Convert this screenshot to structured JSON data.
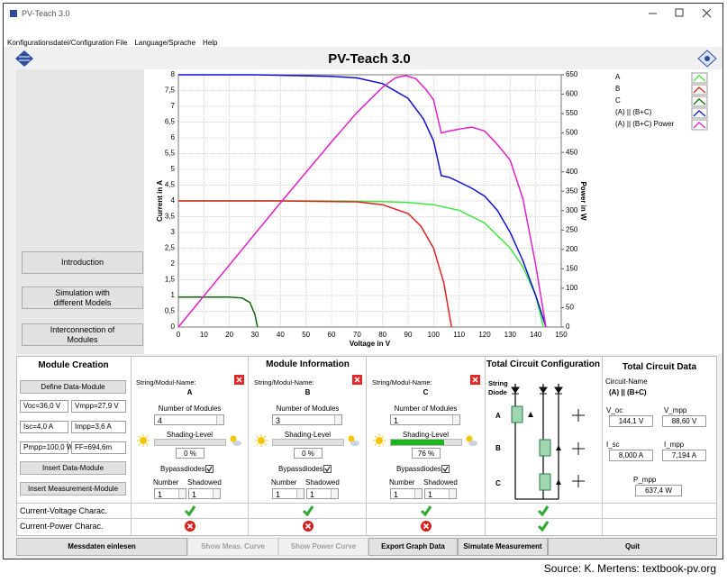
{
  "window": {
    "title": "PV-Teach 3.0",
    "menu": [
      "Konfigurationsdatei/Configuration File",
      "Language/Sprache",
      "Help"
    ]
  },
  "header": {
    "title": "PV-Teach 3.0"
  },
  "nav": [
    "Introduction",
    "Simulation with different Models",
    "Interconnection of Modules"
  ],
  "chart_data": {
    "type": "line",
    "xlabel": "Voltage in V",
    "ylabel": "Current in A",
    "y2label": "Power in W",
    "xlim": [
      0,
      150
    ],
    "xticks": [
      0,
      10,
      20,
      30,
      40,
      50,
      60,
      70,
      80,
      90,
      100,
      110,
      120,
      130,
      140,
      150
    ],
    "ylim": [
      0,
      8
    ],
    "yticks": [
      0,
      {
        "value": 0.5,
        "label": "0,5"
      },
      1,
      {
        "value": 1.5,
        "label": "1,5"
      },
      2,
      {
        "value": 2.5,
        "label": "2,5"
      },
      3,
      {
        "value": 3.5,
        "label": "3,5"
      },
      4,
      {
        "value": 4.5,
        "label": "4,5"
      },
      5,
      {
        "value": 5.5,
        "label": "5,5"
      },
      6,
      {
        "value": 6.5,
        "label": "6,5"
      },
      7,
      {
        "value": 7.5,
        "label": "7,5"
      },
      8
    ],
    "y2lim": [
      0,
      650
    ],
    "y2ticks": [
      0,
      50,
      100,
      150,
      200,
      250,
      300,
      350,
      400,
      450,
      500,
      550,
      600,
      650
    ],
    "grid": true,
    "legend": "right",
    "series": [
      {
        "name": "A",
        "color": "#3fe83f",
        "x": [
          0,
          20,
          40,
          60,
          80,
          90,
          100,
          110,
          120,
          130,
          135,
          140,
          143
        ],
        "values": [
          4,
          4,
          4,
          4,
          3.98,
          3.95,
          3.88,
          3.7,
          3.3,
          2.5,
          1.9,
          1.0,
          0
        ]
      },
      {
        "name": "B",
        "color": "#e02020",
        "x": [
          0,
          40,
          70,
          80,
          90,
          95,
          100,
          104,
          107
        ],
        "values": [
          4,
          4,
          3.97,
          3.88,
          3.6,
          3.2,
          2.5,
          1.4,
          0
        ]
      },
      {
        "name": "C",
        "color": "#0a6a0a",
        "x": [
          0,
          10,
          20,
          25,
          28,
          30,
          31
        ],
        "values": [
          0.95,
          0.95,
          0.95,
          0.92,
          0.78,
          0.4,
          0
        ]
      },
      {
        "name": "(A) || (B+C)",
        "color": "#1010d0",
        "x": [
          0,
          30,
          60,
          70,
          80,
          90,
          96,
          100,
          103,
          106,
          110,
          115,
          120,
          125,
          130,
          135,
          140,
          144
        ],
        "values": [
          8,
          8,
          7.95,
          7.9,
          7.72,
          7.25,
          6.6,
          5.9,
          4.8,
          4.75,
          4.6,
          4.4,
          4.15,
          3.7,
          3.0,
          2.1,
          1.0,
          0
        ]
      },
      {
        "name": "(A) || (B+C) Power",
        "color": "#e020c8",
        "axis": "y2",
        "x": [
          0,
          10,
          20,
          40,
          60,
          70,
          80,
          85,
          89,
          93,
          97,
          100,
          103,
          106,
          110,
          115,
          120,
          125,
          130,
          135,
          140,
          144
        ],
        "values": [
          0,
          80,
          160,
          320,
          477,
          553,
          618,
          642,
          648,
          640,
          612,
          585,
          500,
          505,
          510,
          515,
          505,
          470,
          430,
          330,
          160,
          0
        ]
      }
    ]
  },
  "module_creation": {
    "title": "Module Creation",
    "define_button": "Define Data-Module",
    "fields": [
      "Voc=36,0 V",
      "Vmpp=27,9 V",
      "Isc=4,0 A",
      "Impp=3,6 A",
      "Pmpp=100,0 W",
      "FF=694,6m"
    ],
    "insert_data_button": "Insert Data-Module",
    "insert_measurement_button": "Insert Measurement-Module"
  },
  "rows": [
    "Current-Voltage Charac.",
    "Current-Power Charac."
  ],
  "modules": {
    "title": "Module Information",
    "name_label": "String/Modul-Name:",
    "count_label": "Number of Modules",
    "shading_label": "Shading-Level",
    "bypass_label": "Bypassdiodes",
    "number_label": "Number",
    "shadowed_label": "Shadowed",
    "items": [
      {
        "name": "A",
        "count": 4,
        "shading": {
          "value": 0,
          "label": "0 %"
        },
        "number": 1,
        "shadowed": 1
      },
      {
        "name": "B",
        "count": 3,
        "shading": {
          "value": 0,
          "label": "0 %"
        },
        "number": 1,
        "shadowed": 1
      },
      {
        "name": "C",
        "count": 1,
        "shading": {
          "value": 76,
          "label": "76 %"
        },
        "number": 1,
        "shadowed": 1
      }
    ]
  },
  "circuit_config": {
    "title": "Total Circuit Configuration",
    "string_diode": "String Diode",
    "strings": [
      "A",
      "B",
      "C"
    ]
  },
  "circuit_data": {
    "title": "Total Circuit Data",
    "name_label": "Circuit-Name",
    "name": "(A) || (B+C)",
    "fields": [
      {
        "label": "V_oc",
        "value": "144,1 V"
      },
      {
        "label": "V_mpp",
        "value": "88,60 V"
      },
      {
        "label": "I_sc",
        "value": "8,000 A"
      },
      {
        "label": "I_mpp",
        "value": "7,194 A"
      },
      {
        "label": "P_mpp",
        "value": "637,4 W"
      }
    ]
  },
  "footer": [
    "Messdaten einlesen",
    "Show Meas. Curve",
    "Show Power Curve",
    "Export Graph Data",
    "Simulate Measurement",
    "Quit"
  ],
  "source": "Source: K. Mertens: textbook-pv.org"
}
